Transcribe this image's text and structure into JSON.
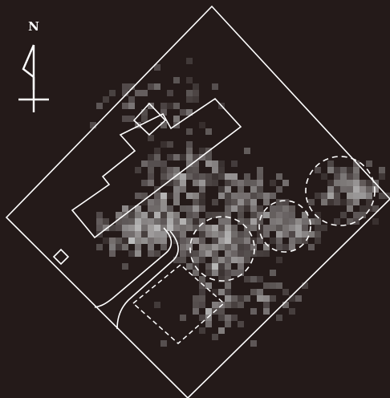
{
  "map": {
    "background_color": "#241a19",
    "line_color": "#ffffff",
    "density_color": "#c8c8c8",
    "north_arrow": {
      "label": "N",
      "icon": "north-arrow-icon"
    },
    "features": [
      {
        "name": "site-boundary",
        "style": "solid"
      },
      {
        "name": "main-building",
        "style": "solid"
      },
      {
        "name": "annex-building",
        "style": "solid"
      },
      {
        "name": "small-structure",
        "style": "solid"
      },
      {
        "name": "curved-path",
        "style": "solid"
      },
      {
        "name": "dashed-rect-area",
        "style": "dashed"
      },
      {
        "name": "dashed-circle-area",
        "style": "dashed",
        "count": 3
      }
    ]
  }
}
